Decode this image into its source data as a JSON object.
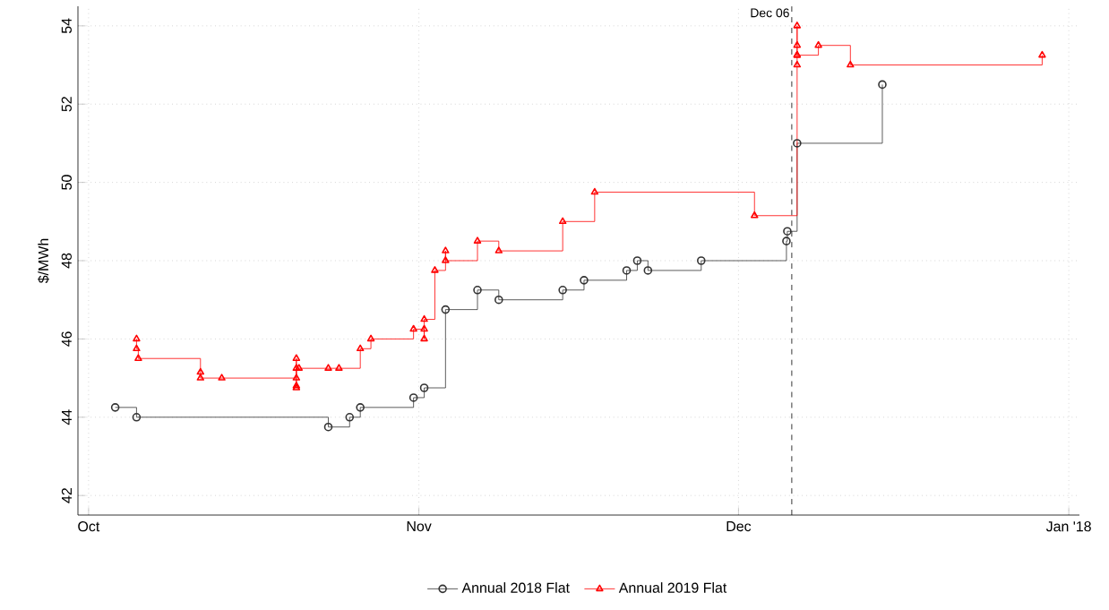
{
  "chart_data": {
    "type": "step",
    "ylabel": "$/MWh",
    "xlim": [
      "2017-09-30",
      "2018-01-02"
    ],
    "ylim": [
      41.5,
      54.5
    ],
    "xticks": [
      {
        "value": "2017-10-01",
        "label": "Oct"
      },
      {
        "value": "2017-11-01",
        "label": "Nov"
      },
      {
        "value": "2017-12-01",
        "label": "Dec"
      },
      {
        "value": "2018-01-01",
        "label": "Jan '18"
      }
    ],
    "yticks": [
      42,
      44,
      46,
      48,
      50,
      52,
      54
    ],
    "grid": true,
    "legend": "bottom",
    "line_style": "solid",
    "ref_lines": [
      {
        "axis": "x",
        "value": "2017-12-06",
        "label": "Dec 06",
        "color": "#000000",
        "line_style": "dashed"
      }
    ],
    "series": [
      {
        "name": "Annual 2018 Flat",
        "color": "#333333",
        "marker": "circle",
        "x": [
          "2017-10-03T12:00",
          "2017-10-05T12:00",
          "2017-10-23T12:00",
          "2017-10-25T12:00",
          "2017-10-26T12:00",
          "2017-10-31T12:00",
          "2017-11-01T12:00",
          "2017-11-03T12:00",
          "2017-11-06T12:00",
          "2017-11-08T12:00",
          "2017-11-14T12:00",
          "2017-11-16T12:00",
          "2017-11-20T12:00",
          "2017-11-21T12:00",
          "2017-11-22T12:00",
          "2017-11-27T12:00",
          "2017-12-05T12:00",
          "2017-12-05T14:00",
          "2017-12-06T12:00",
          "2017-12-14T12:00"
        ],
        "values": [
          44.25,
          44.0,
          43.75,
          44.0,
          44.25,
          44.5,
          44.75,
          46.75,
          47.25,
          47.0,
          47.25,
          47.5,
          47.75,
          48.0,
          47.75,
          48.0,
          48.5,
          48.75,
          51.0,
          52.5
        ]
      },
      {
        "name": "Annual 2019 Flat",
        "color": "#ff0000",
        "marker": "triangle",
        "x": [
          "2017-10-05T12:00",
          "2017-10-05T12:00",
          "2017-10-05T16:00",
          "2017-10-11T12:00",
          "2017-10-11T12:00",
          "2017-10-13T12:00",
          "2017-10-20T12:00",
          "2017-10-20T12:00",
          "2017-10-20T12:00",
          "2017-10-20T12:00",
          "2017-10-20T12:00",
          "2017-10-20T18:00",
          "2017-10-23T12:00",
          "2017-10-24T12:00",
          "2017-10-26T12:00",
          "2017-10-27T12:00",
          "2017-10-31T12:00",
          "2017-11-01T12:00",
          "2017-11-01T12:00",
          "2017-11-01T12:00",
          "2017-11-02T12:00",
          "2017-11-03T12:00",
          "2017-11-03T12:00",
          "2017-11-06T12:00",
          "2017-11-08T12:00",
          "2017-11-14T12:00",
          "2017-11-17T12:00",
          "2017-12-02T12:00",
          "2017-12-06T12:00",
          "2017-12-06T12:00",
          "2017-12-06T12:00",
          "2017-12-06T12:00",
          "2017-12-06T12:00",
          "2017-12-08T12:00",
          "2017-12-11T12:00",
          "2017-12-29T12:00"
        ],
        "values": [
          46.0,
          45.75,
          45.5,
          45.15,
          45.0,
          45.0,
          45.5,
          45.0,
          44.75,
          44.8,
          45.25,
          45.25,
          45.25,
          45.25,
          45.75,
          46.0,
          46.25,
          46.25,
          46.0,
          46.5,
          47.75,
          48.25,
          48.0,
          48.5,
          48.25,
          49.0,
          49.75,
          49.15,
          53.0,
          53.5,
          54.0,
          53.25,
          53.25,
          53.5,
          53.0,
          53.25
        ]
      }
    ]
  }
}
